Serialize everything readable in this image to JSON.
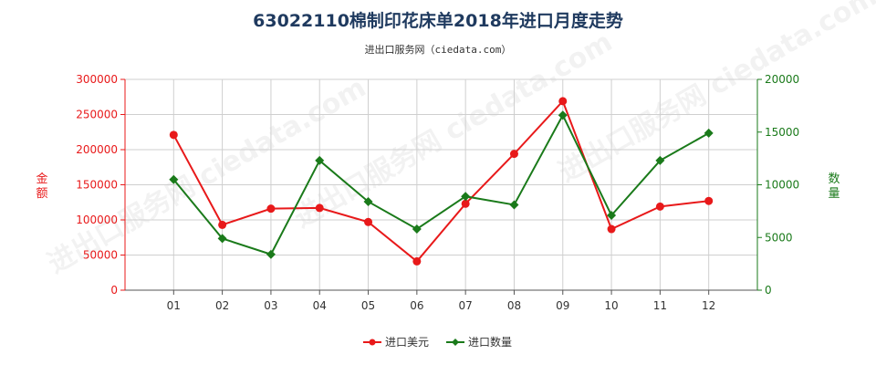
{
  "title": "63022110棉制印花床单2018年进口月度走势",
  "subtitle": "进出口服务网（ciedata.com）",
  "watermark": "进出口服务网 ciedata.com",
  "chart_data": {
    "type": "line",
    "categories": [
      "01",
      "02",
      "03",
      "04",
      "05",
      "06",
      "07",
      "08",
      "09",
      "10",
      "11",
      "12"
    ],
    "y_left": {
      "label": "金额",
      "ylim": [
        0,
        300000
      ],
      "ticks": [
        "0",
        "50000",
        "100000",
        "150000",
        "200000",
        "250000",
        "300000"
      ],
      "color": "#e8191a"
    },
    "y_right": {
      "label": "数量",
      "ylim": [
        0,
        20000
      ],
      "ticks": [
        "0",
        "5000",
        "10000",
        "15000",
        "20000"
      ],
      "color": "#1a7a1a"
    },
    "series": [
      {
        "name": "进口美元",
        "axis": "left",
        "color": "#e8191a",
        "values": [
          221000,
          93000,
          116000,
          117000,
          97000,
          41000,
          123000,
          194000,
          269000,
          87000,
          119000,
          127000
        ]
      },
      {
        "name": "进口数量",
        "axis": "right",
        "color": "#1a7a1a",
        "values": [
          10500,
          4900,
          3400,
          12300,
          8400,
          5800,
          8900,
          8100,
          16600,
          7100,
          12300,
          14900
        ]
      }
    ],
    "grid": true,
    "legend_position": "bottom-center"
  }
}
